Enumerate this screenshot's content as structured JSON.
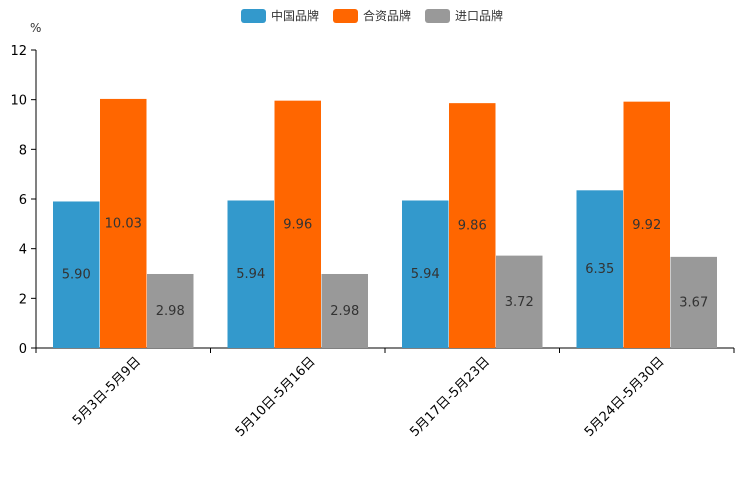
{
  "chart_data": {
    "type": "bar",
    "unit": "%",
    "categories": [
      "5月3日-5月9日",
      "5月10日-5月16日",
      "5月17日-5月23日",
      "5月24日-5月30日"
    ],
    "series": [
      {
        "name": "中国品牌",
        "color": "#3399cc",
        "values": [
          5.9,
          5.94,
          5.94,
          6.35
        ],
        "labels": [
          "5.90",
          "5.94",
          "5.94",
          "6.35"
        ]
      },
      {
        "name": "合资品牌",
        "color": "#ff6600",
        "values": [
          10.03,
          9.96,
          9.86,
          9.92
        ],
        "labels": [
          "10.03",
          "9.96",
          "9.86",
          "9.92"
        ]
      },
      {
        "name": "进口品牌",
        "color": "#999999",
        "values": [
          2.98,
          2.98,
          3.72,
          3.67
        ],
        "labels": [
          "2.98",
          "2.98",
          "3.72",
          "3.67"
        ]
      }
    ],
    "ylim": [
      0,
      12
    ],
    "yticks": [
      0,
      2,
      4,
      6,
      8,
      10,
      12
    ],
    "ytick_labels": [
      "0",
      "2",
      "4",
      "6",
      "8",
      "10",
      "12"
    ],
    "legend_position": "top-center",
    "grid": false
  }
}
